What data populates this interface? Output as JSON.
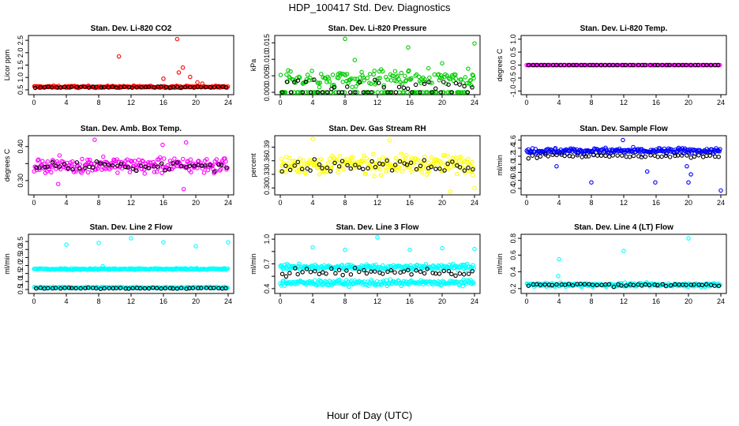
{
  "figure": {
    "title": "HDP_100417  Std. Dev. Diagnostics",
    "xlabel": "Hour of Day (UTC)"
  },
  "colors": {
    "black_series": "#000000"
  },
  "chart_data": [
    {
      "type": "scatter",
      "title": "Stan. Dev. Li-820 CO2",
      "ylabel": "Licor ppm",
      "color": "#ff0000",
      "xlim": [
        0,
        24
      ],
      "ylim": [
        0.4,
        2.6
      ],
      "xticks": [
        0,
        4,
        8,
        12,
        16,
        20,
        24
      ],
      "yticks": [
        0.5,
        1.0,
        1.5,
        2.0,
        2.5
      ],
      "ytick_labels": [
        "0.5",
        "1.0",
        "1.5",
        "2.0",
        "2.5"
      ],
      "grid": false,
      "bulk": {
        "center": 0.62,
        "spread": 0.04
      },
      "black": {
        "center": 0.61,
        "spread": 0.03
      },
      "outliers": [
        [
          10.5,
          1.85
        ],
        [
          17.7,
          2.55
        ],
        [
          17.9,
          1.2
        ],
        [
          18.4,
          1.4
        ],
        [
          19.3,
          1.02
        ],
        [
          16.0,
          0.95
        ],
        [
          20.2,
          0.8
        ],
        [
          20.8,
          0.75
        ]
      ]
    },
    {
      "type": "scatter",
      "title": "Stan. Dev. Li-820 Pressure",
      "ylabel": "kPa",
      "color": "#00cc00",
      "xlim": [
        0,
        24
      ],
      "ylim": [
        0,
        0.0165
      ],
      "xticks": [
        0,
        4,
        8,
        12,
        16,
        20,
        24
      ],
      "yticks": [
        0,
        0.005,
        0.01,
        0.015
      ],
      "ytick_labels": [
        "0.000",
        "0.005",
        "0.010",
        "0.015"
      ],
      "grid": false,
      "bulk": {
        "center": 0.0042,
        "spread": 0.0026
      },
      "black": {
        "center": 0.0025,
        "spread": 0.002
      },
      "outliers": [
        [
          8.0,
          0.0162
        ],
        [
          15.8,
          0.0136
        ],
        [
          20.0,
          0.0088
        ],
        [
          24.0,
          0.0148
        ],
        [
          9.2,
          0.0098
        ]
      ]
    },
    {
      "type": "scatter",
      "title": "Stan. Dev. Li-820 Temp.",
      "ylabel": "degrees C",
      "color": "#ff00ff",
      "xlim": [
        0,
        24
      ],
      "ylim": [
        -1.05,
        1.05
      ],
      "xticks": [
        0,
        4,
        8,
        12,
        16,
        20,
        24
      ],
      "yticks": [
        -1.0,
        -0.5,
        0.0,
        0.5,
        1.0
      ],
      "ytick_labels": [
        "-1.0",
        "-0.5",
        "0.0",
        "0.5",
        "1.0"
      ],
      "grid": false,
      "bulk": {
        "center": 0.0,
        "spread": 0.0
      },
      "black": {
        "center": 0.0,
        "spread": 0.0
      },
      "outliers": []
    },
    {
      "type": "scatter",
      "title": "Stan. Dev. Amb. Box Temp.",
      "ylabel": "degrees C",
      "color": "#ff00ff",
      "xlim": [
        0,
        24
      ],
      "ylim": [
        0.265,
        0.425
      ],
      "xticks": [
        0,
        4,
        8,
        12,
        16,
        20,
        24
      ],
      "yticks": [
        0.3,
        0.35,
        0.4
      ],
      "ytick_labels": [
        "0.30",
        "",
        "0.40"
      ],
      "grid": false,
      "bulk": {
        "center": 0.345,
        "spread": 0.022
      },
      "black": {
        "center": 0.342,
        "spread": 0.012
      },
      "outliers": [
        [
          7.5,
          0.42
        ],
        [
          18.8,
          0.412
        ],
        [
          15.9,
          0.405
        ],
        [
          18.5,
          0.275
        ],
        [
          3.0,
          0.29
        ]
      ]
    },
    {
      "type": "scatter",
      "title": "Stan. Dev. Gas Stream RH",
      "ylabel": "percent",
      "color": "#ffff00",
      "xlim": [
        0,
        24
      ],
      "ylim": [
        0.29,
        0.41
      ],
      "xticks": [
        0,
        4,
        8,
        12,
        16,
        20,
        24
      ],
      "yticks": [
        0.3,
        0.33,
        0.36,
        0.39
      ],
      "ytick_labels": [
        "0.30",
        "0.33",
        "0.36",
        "0.39"
      ],
      "grid": false,
      "bulk": {
        "center": 0.352,
        "spread": 0.02
      },
      "black": {
        "center": 0.35,
        "spread": 0.013
      },
      "outliers": [
        [
          4.0,
          0.408
        ],
        [
          13.5,
          0.405
        ],
        [
          21.0,
          0.292
        ],
        [
          24.0,
          0.3
        ]
      ]
    },
    {
      "type": "scatter",
      "title": "Stan. Dev. Sample Flow",
      "ylabel": "ml/min",
      "color": "#0000ff",
      "xlim": [
        0,
        24
      ],
      "ylim": [
        0.3,
        1.65
      ],
      "xticks": [
        0,
        4,
        8,
        12,
        16,
        20,
        24
      ],
      "yticks": [
        0.4,
        0.6,
        0.8,
        1.0,
        1.2,
        1.4,
        1.6
      ],
      "ytick_labels": [
        "0.4",
        "0.6",
        "0.8",
        "1.0",
        "1.2",
        "1.4",
        "1.6"
      ],
      "grid": false,
      "bulk": {
        "center": 1.33,
        "spread": 0.07
      },
      "black": {
        "center": 1.2,
        "spread": 0.05
      },
      "outliers": [
        [
          8.0,
          0.55
        ],
        [
          15.9,
          0.55
        ],
        [
          20.0,
          0.55
        ],
        [
          24.0,
          0.35
        ],
        [
          20.3,
          0.75
        ],
        [
          14.9,
          0.82
        ],
        [
          3.7,
          0.95
        ],
        [
          19.8,
          0.95
        ],
        [
          11.9,
          1.6
        ]
      ]
    },
    {
      "type": "scatter",
      "title": "Stan. Dev. Line 2 Flow",
      "ylabel": "ml/min",
      "color": "#00ffff",
      "xlim": [
        0,
        24
      ],
      "ylim": [
        0.4,
        3.8
      ],
      "xticks": [
        0,
        4,
        8,
        12,
        16,
        20,
        24
      ],
      "yticks": [
        0.5,
        1.0,
        1.5,
        2.0,
        2.5,
        3.0,
        3.5
      ],
      "ytick_labels": [
        "0.5",
        "1.0",
        "1.5",
        "2.0",
        "2.5",
        "3.0",
        "3.5"
      ],
      "grid": false,
      "bands": [
        {
          "center": 1.78,
          "spread": 0.05
        },
        {
          "center": 0.62,
          "spread": 0.05
        }
      ],
      "black": {
        "center": 0.58,
        "spread": 0.03
      },
      "outliers": [
        [
          4.0,
          3.3
        ],
        [
          8.0,
          3.4
        ],
        [
          12.0,
          3.7
        ],
        [
          16.0,
          3.45
        ],
        [
          20.0,
          3.2
        ],
        [
          24.0,
          3.45
        ],
        [
          8.5,
          1.95
        ]
      ]
    },
    {
      "type": "scatter",
      "title": "Stan. Dev. Line 3 Flow",
      "ylabel": "ml/min",
      "color": "#00ffff",
      "xlim": [
        0,
        24
      ],
      "ylim": [
        0.37,
        1.03
      ],
      "xticks": [
        0,
        4,
        8,
        12,
        16,
        20,
        24
      ],
      "yticks": [
        0.4,
        0.55,
        0.7,
        0.85,
        1.0
      ],
      "ytick_labels": [
        "0.4",
        "",
        "0.7",
        "",
        "1.0"
      ],
      "grid": false,
      "bands": [
        {
          "center": 0.66,
          "spread": 0.035
        },
        {
          "center": 0.47,
          "spread": 0.035
        }
      ],
      "black": {
        "center": 0.6,
        "spread": 0.045
      },
      "outliers": [
        [
          4.0,
          0.9
        ],
        [
          8.0,
          0.87
        ],
        [
          12.0,
          1.02
        ],
        [
          16.0,
          0.87
        ],
        [
          20.0,
          0.89
        ],
        [
          24.0,
          0.88
        ]
      ]
    },
    {
      "type": "scatter",
      "title": "Stan. Dev. Line 4 (LT) Flow",
      "ylabel": "ml/min",
      "color": "#00ffff",
      "xlim": [
        0,
        24
      ],
      "ylim": [
        0.17,
        0.82
      ],
      "xticks": [
        0,
        4,
        8,
        12,
        16,
        20,
        24
      ],
      "yticks": [
        0.2,
        0.4,
        0.6,
        0.8
      ],
      "ytick_labels": [
        "0.2",
        "0.4",
        "0.6",
        "0.8"
      ],
      "grid": false,
      "bulk": {
        "center": 0.245,
        "spread": 0.022
      },
      "black": {
        "center": 0.245,
        "spread": 0.018
      },
      "outliers": [
        [
          4.0,
          0.55
        ],
        [
          12.0,
          0.65
        ],
        [
          20.0,
          0.8
        ],
        [
          3.9,
          0.35
        ]
      ]
    }
  ]
}
